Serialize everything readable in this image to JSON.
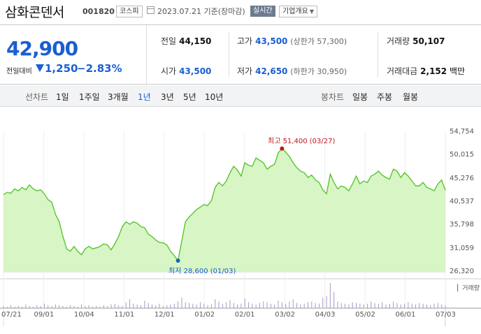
{
  "header": {
    "title": "삼화콘덴서",
    "code": "001820",
    "market": "코스피",
    "date": "2023.07.21 기준(장마감)",
    "realtime": "실시간",
    "company": "기업개요"
  },
  "quote": {
    "price": "42,900",
    "change_label": "전일대비",
    "change": "1,250",
    "change_pct": "−2.83%",
    "prev_close_label": "전일",
    "prev_close": "44,150",
    "high_label": "고가",
    "high": "43,500",
    "upper_limit": "(상한가 57,300)",
    "volume_label": "거래량",
    "volume": "50,107",
    "open_label": "시가",
    "open": "43,500",
    "low_label": "저가",
    "low": "42,650",
    "lower_limit": "(하한가 30,950)",
    "amount_label": "거래대금",
    "amount": "2,152",
    "amount_unit": "백만"
  },
  "periods": {
    "chart_label": "선차트",
    "items": [
      "1일",
      "1주일",
      "3개월",
      "1년",
      "3년",
      "5년",
      "10년"
    ],
    "selected": "1년",
    "candle_label": "봉차트",
    "candle_items": [
      "일봉",
      "주봉",
      "월봉"
    ]
  },
  "colors": {
    "price_down": "#1a5fd0",
    "max": "#c0161c",
    "line": "#59c62e",
    "fill": "#d8f5c6"
  },
  "chart_data": {
    "type": "area",
    "y_ticks": [
      "54,754",
      "50,015",
      "45,276",
      "40,537",
      "35,798",
      "31,059",
      "26,320"
    ],
    "x_ticks": [
      "07/21",
      "09/01",
      "10/04",
      "11/01",
      "12/01",
      "01/02",
      "02/01",
      "03/02",
      "04/03",
      "05/02",
      "06/01",
      "07/03"
    ],
    "ylim": [
      26320,
      54754
    ],
    "max_label": "최고 51,400 (03/27)",
    "min_label": "최저 28,600 (01/03)",
    "volume_legend": "거래량",
    "series": [
      {
        "values": [
          42000,
          42500,
          42300,
          43200,
          42800,
          43500,
          43000,
          44000,
          43200,
          42800,
          43000,
          42200,
          41000,
          40500,
          38000,
          36500,
          33500,
          31000,
          30500,
          31500,
          30500,
          29800,
          31000,
          31500,
          31000,
          31200,
          31500,
          32000,
          31800,
          30800,
          32000,
          33500,
          35500,
          36500,
          36000,
          36500,
          36200,
          35500,
          35300,
          34000,
          33500,
          32800,
          32300,
          32200,
          31800,
          30500,
          29600,
          28600,
          32500,
          36500,
          37500,
          38200,
          39000,
          39500,
          40000,
          39800,
          40800,
          43500,
          44500,
          43800,
          44800,
          46500,
          47800,
          47000,
          45800,
          48500,
          48000,
          47800,
          49500,
          49000,
          48500,
          47200,
          47800,
          48200,
          50500,
          51400,
          50700,
          49800,
          48500,
          47500,
          46800,
          46500,
          45500,
          46000,
          45000,
          44500,
          43000,
          42200,
          46200,
          44500,
          43200,
          43800,
          43500,
          42800,
          44200,
          45800,
          44200,
          44800,
          44500,
          45800,
          46200,
          46800,
          46000,
          45500,
          45200,
          47200,
          46800,
          45500,
          46500,
          45800,
          44800,
          43800,
          43800,
          44500,
          43500,
          43200,
          42800,
          44200,
          45000,
          42900
        ]
      }
    ],
    "volume": [
      3,
      2,
      4,
      2,
      3,
      2,
      5,
      3,
      2,
      4,
      3,
      6,
      4,
      3,
      5,
      4,
      3,
      2,
      4,
      3,
      2,
      5,
      3,
      4,
      2,
      3,
      2,
      4,
      3,
      5,
      6,
      4,
      3,
      8,
      12,
      6,
      5,
      4,
      10,
      7,
      5,
      4,
      6,
      3,
      4,
      5,
      6,
      9,
      14,
      8,
      7,
      6,
      5,
      8,
      6,
      4,
      5,
      12,
      9,
      6,
      8,
      11,
      7,
      5,
      6,
      13,
      8,
      6,
      5,
      7,
      9,
      8,
      6,
      5,
      10,
      8,
      6,
      9,
      12,
      7,
      5,
      6,
      8,
      9,
      7,
      6,
      14,
      16,
      34,
      22,
      9,
      7,
      6,
      5,
      8,
      7,
      6,
      5,
      6,
      9,
      7,
      6,
      8,
      5,
      6,
      9,
      7,
      5,
      6,
      8,
      6,
      5,
      7,
      6,
      5,
      4,
      6,
      7,
      5,
      4
    ]
  }
}
